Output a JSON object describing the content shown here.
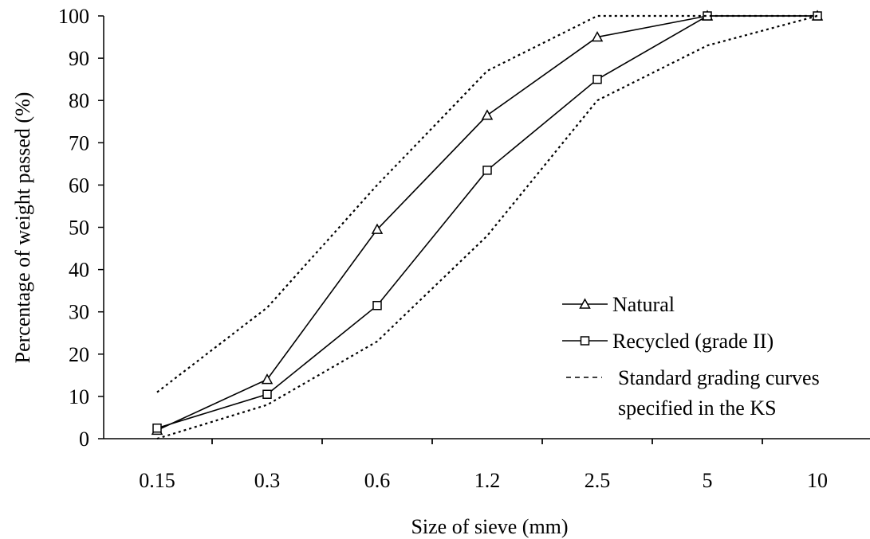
{
  "chart_data": {
    "type": "line",
    "xlabel": "Size of sieve (mm)",
    "ylabel": "Percentage of weight passed (%)",
    "categories": [
      "0.15",
      "0.3",
      "0.6",
      "1.2",
      "2.5",
      "5",
      "10"
    ],
    "ylim": [
      0,
      100
    ],
    "yticks": [
      0,
      10,
      20,
      30,
      40,
      50,
      60,
      70,
      80,
      90,
      100
    ],
    "grid": false,
    "legend_position": "bottom-right",
    "series": [
      {
        "name": "Natural",
        "marker": "triangle",
        "style": "solid",
        "values": [
          2,
          14,
          49.5,
          76.5,
          95,
          100,
          100
        ]
      },
      {
        "name": "Recycled (grade II)",
        "marker": "square",
        "style": "solid",
        "values": [
          2.5,
          10.5,
          31.5,
          63.5,
          85,
          100,
          100
        ]
      },
      {
        "name": "Standard grading curves specified in the KS",
        "legend_lines": [
          "Standard grading curves",
          "specified in the KS"
        ],
        "marker": "none",
        "style": "dashed",
        "values": [
          11,
          31,
          60,
          87,
          100,
          100,
          100
        ]
      },
      {
        "name": "",
        "marker": "none",
        "style": "dashed",
        "values": [
          0,
          8,
          23,
          48,
          80,
          93,
          100
        ]
      }
    ]
  }
}
